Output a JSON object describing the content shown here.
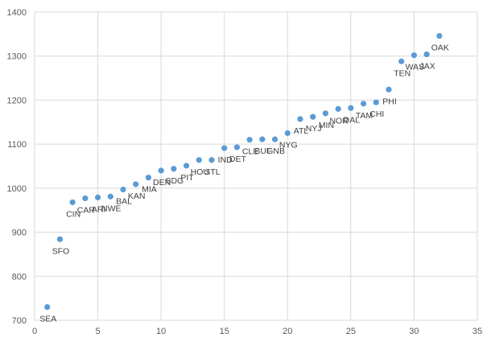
{
  "chart_data": {
    "type": "scatter",
    "title": "",
    "xlabel": "",
    "ylabel": "",
    "xlim": [
      0,
      35
    ],
    "ylim": [
      700,
      1400
    ],
    "xticks": [
      0,
      5,
      10,
      15,
      20,
      25,
      30,
      35
    ],
    "yticks": [
      700,
      800,
      900,
      1000,
      1100,
      1200,
      1300,
      1400
    ],
    "grid": true,
    "marker_color": "#5b9bd5",
    "points": [
      {
        "x": 1,
        "y": 730,
        "label": "SEA"
      },
      {
        "x": 2,
        "y": 884,
        "label": "SFO"
      },
      {
        "x": 3,
        "y": 968,
        "label": "CIN"
      },
      {
        "x": 4,
        "y": 977,
        "label": "CAR"
      },
      {
        "x": 5,
        "y": 979,
        "label": "ARI"
      },
      {
        "x": 6,
        "y": 981,
        "label": "NWE"
      },
      {
        "x": 7,
        "y": 997,
        "label": "BAL"
      },
      {
        "x": 8,
        "y": 1009,
        "label": "KAN"
      },
      {
        "x": 9,
        "y": 1024,
        "label": "MIA"
      },
      {
        "x": 10,
        "y": 1040,
        "label": "DEN"
      },
      {
        "x": 11,
        "y": 1044,
        "label": "SDG"
      },
      {
        "x": 12,
        "y": 1051,
        "label": "PIT"
      },
      {
        "x": 13,
        "y": 1064,
        "label": "HOU"
      },
      {
        "x": 14,
        "y": 1064,
        "label": "STL"
      },
      {
        "x": 15,
        "y": 1091,
        "label": "IND"
      },
      {
        "x": 16,
        "y": 1093,
        "label": "DET"
      },
      {
        "x": 17,
        "y": 1110,
        "label": "CLE"
      },
      {
        "x": 18,
        "y": 1111,
        "label": "BUF"
      },
      {
        "x": 19,
        "y": 1111,
        "label": "GNB"
      },
      {
        "x": 20,
        "y": 1125,
        "label": "NYG"
      },
      {
        "x": 21,
        "y": 1157,
        "label": "ATL"
      },
      {
        "x": 22,
        "y": 1162,
        "label": "NYJ"
      },
      {
        "x": 23,
        "y": 1170,
        "label": "MIN"
      },
      {
        "x": 24,
        "y": 1180,
        "label": "NOR"
      },
      {
        "x": 25,
        "y": 1182,
        "label": "DAL"
      },
      {
        "x": 26,
        "y": 1192,
        "label": "TAM"
      },
      {
        "x": 27,
        "y": 1195,
        "label": "CHI"
      },
      {
        "x": 28,
        "y": 1224,
        "label": "PHI"
      },
      {
        "x": 29,
        "y": 1288,
        "label": "TEN"
      },
      {
        "x": 30,
        "y": 1302,
        "label": "WAS"
      },
      {
        "x": 31,
        "y": 1304,
        "label": "JAX"
      },
      {
        "x": 32,
        "y": 1346,
        "label": "OAK"
      }
    ]
  }
}
